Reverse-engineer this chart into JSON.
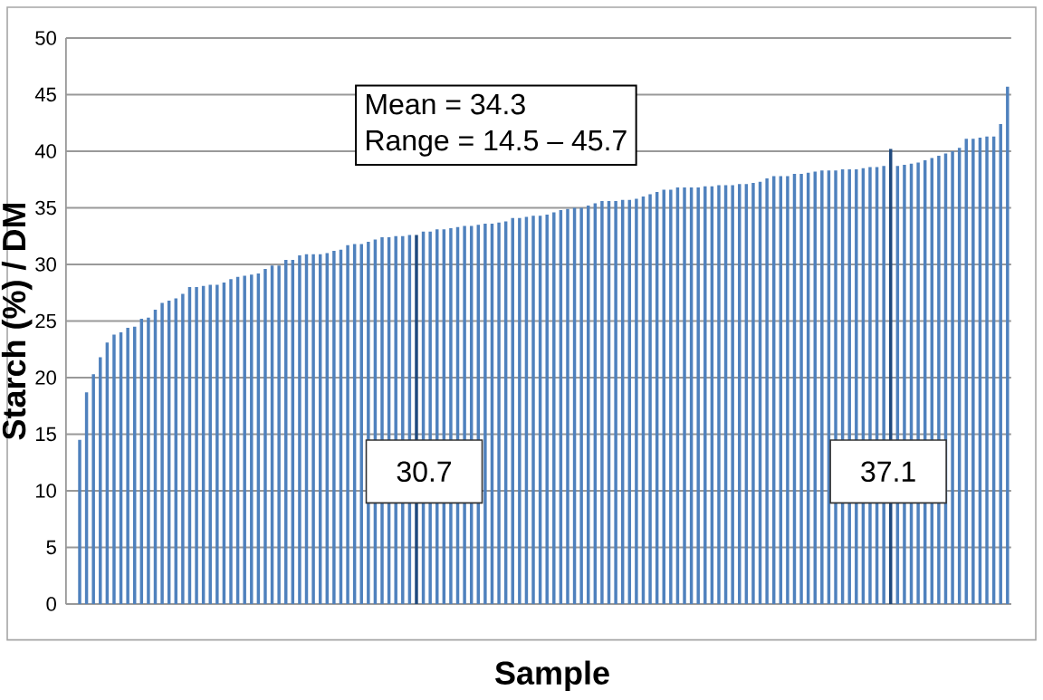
{
  "chart_data": {
    "type": "bar",
    "xlabel": "Sample",
    "ylabel": "Starch (%) / DM",
    "categories": [
      null,
      null,
      null,
      null,
      null,
      null,
      null,
      null,
      null,
      null,
      null,
      null,
      null,
      null,
      null,
      null,
      null,
      null,
      null,
      null,
      null,
      null,
      null,
      null,
      null,
      null,
      null,
      null,
      null,
      null,
      null,
      null,
      null,
      null,
      null,
      null,
      null,
      null,
      null,
      null,
      null,
      null,
      null,
      null,
      null,
      null,
      null,
      null,
      null,
      null,
      null,
      null,
      null,
      null,
      null,
      null,
      null,
      null,
      null,
      null,
      null,
      null,
      null,
      null,
      null,
      null,
      null,
      null,
      null,
      null,
      null,
      null,
      null,
      null,
      null,
      null,
      null,
      null,
      null,
      null,
      null,
      null,
      null,
      null,
      null,
      null,
      null,
      null,
      null,
      null,
      null,
      null,
      null,
      null,
      null,
      null,
      null,
      null,
      null,
      null,
      null,
      null,
      null,
      null,
      null,
      null,
      null,
      null,
      null,
      null,
      null,
      null,
      null,
      null,
      null,
      null,
      null,
      null,
      null,
      null,
      null,
      null,
      null,
      null,
      null,
      null,
      null,
      null,
      null,
      null,
      null,
      null,
      null,
      null,
      null,
      null
    ],
    "values": [
      14.5,
      18.7,
      20.3,
      21.8,
      23.1,
      23.8,
      24.0,
      24.4,
      24.5,
      25.2,
      25.3,
      26.0,
      26.6,
      26.8,
      27.0,
      27.4,
      28.0,
      28.0,
      28.1,
      28.2,
      28.2,
      28.4,
      28.7,
      28.9,
      29.0,
      29.1,
      29.2,
      29.6,
      29.9,
      29.9,
      30.4,
      30.4,
      30.8,
      30.9,
      30.9,
      30.9,
      31.0,
      31.2,
      31.3,
      31.7,
      31.8,
      31.8,
      32.0,
      32.2,
      32.4,
      32.4,
      32.5,
      32.5,
      32.6,
      32.6,
      32.9,
      32.9,
      33.1,
      33.1,
      33.2,
      33.3,
      33.4,
      33.4,
      33.5,
      33.6,
      33.6,
      33.7,
      33.8,
      34.1,
      34.1,
      34.2,
      34.3,
      34.3,
      34.4,
      34.6,
      34.8,
      34.9,
      35.0,
      35.0,
      35.2,
      35.4,
      35.6,
      35.6,
      35.6,
      35.7,
      35.7,
      35.8,
      36.0,
      36.2,
      36.4,
      36.6,
      36.6,
      36.8,
      36.8,
      36.8,
      36.8,
      36.9,
      36.9,
      37.0,
      37.0,
      37.0,
      37.1,
      37.1,
      37.2,
      37.3,
      37.6,
      37.8,
      37.8,
      37.8,
      38.0,
      38.0,
      38.1,
      38.2,
      38.3,
      38.3,
      38.3,
      38.4,
      38.4,
      38.4,
      38.5,
      38.6,
      38.6,
      38.7,
      40.2,
      38.7,
      38.8,
      38.9,
      39.0,
      39.2,
      39.4,
      39.6,
      39.8,
      40.0,
      40.3,
      41.1,
      41.1,
      41.2,
      41.3,
      41.3,
      42.4,
      45.7
    ],
    "colors": [
      "#4f81bd",
      "#4f81bd",
      "#4f81bd",
      "#4f81bd",
      "#4f81bd",
      "#4f81bd",
      "#4f81bd",
      "#4f81bd",
      "#4f81bd",
      "#4f81bd",
      "#4f81bd",
      "#4f81bd",
      "#4f81bd",
      "#4f81bd",
      "#4f81bd",
      "#4f81bd",
      "#4f81bd",
      "#4f81bd",
      "#4f81bd",
      "#4f81bd",
      "#4f81bd",
      "#4f81bd",
      "#4f81bd",
      "#4f81bd",
      "#4f81bd",
      "#4f81bd",
      "#4f81bd",
      "#4f81bd",
      "#4f81bd",
      "#4f81bd",
      "#4f81bd",
      "#4f81bd",
      "#4f81bd",
      "#4f81bd",
      "#4f81bd",
      "#4f81bd",
      "#4f81bd",
      "#4f81bd",
      "#4f81bd",
      "#4f81bd",
      "#4f81bd",
      "#4f81bd",
      "#4f81bd",
      "#4f81bd",
      "#4f81bd",
      "#4f81bd",
      "#4f81bd",
      "#4f81bd",
      "#4f81bd",
      "#1f497d",
      "#4f81bd",
      "#4f81bd",
      "#4f81bd",
      "#4f81bd",
      "#4f81bd",
      "#4f81bd",
      "#4f81bd",
      "#4f81bd",
      "#4f81bd",
      "#4f81bd",
      "#4f81bd",
      "#4f81bd",
      "#4f81bd",
      "#4f81bd",
      "#4f81bd",
      "#4f81bd",
      "#4f81bd",
      "#4f81bd",
      "#4f81bd",
      "#4f81bd",
      "#4f81bd",
      "#4f81bd",
      "#4f81bd",
      "#4f81bd",
      "#4f81bd",
      "#4f81bd",
      "#4f81bd",
      "#4f81bd",
      "#4f81bd",
      "#4f81bd",
      "#4f81bd",
      "#4f81bd",
      "#4f81bd",
      "#4f81bd",
      "#4f81bd",
      "#4f81bd",
      "#4f81bd",
      "#4f81bd",
      "#4f81bd",
      "#4f81bd",
      "#4f81bd",
      "#4f81bd",
      "#4f81bd",
      "#4f81bd",
      "#4f81bd",
      "#4f81bd",
      "#4f81bd",
      "#4f81bd",
      "#4f81bd",
      "#4f81bd",
      "#4f81bd",
      "#4f81bd",
      "#4f81bd",
      "#4f81bd",
      "#4f81bd",
      "#4f81bd",
      "#4f81bd",
      "#4f81bd",
      "#4f81bd",
      "#4f81bd",
      "#4f81bd",
      "#4f81bd",
      "#4f81bd",
      "#4f81bd",
      "#4f81bd",
      "#4f81bd",
      "#4f81bd",
      "#4f81bd",
      "#1f497d",
      "#4f81bd",
      "#4f81bd",
      "#4f81bd",
      "#4f81bd",
      "#4f81bd",
      "#4f81bd",
      "#4f81bd",
      "#4f81bd",
      "#4f81bd",
      "#4f81bd",
      "#4f81bd",
      "#4f81bd",
      "#4f81bd",
      "#4f81bd",
      "#4f81bd",
      "#4f81bd",
      "#4f81bd"
    ],
    "ylim": [
      0,
      50
    ],
    "yticks": [
      0,
      5,
      10,
      15,
      20,
      25,
      30,
      35,
      40,
      45,
      50
    ],
    "grid": "y",
    "annotations": [
      "Mean = 34.3",
      "Range = 14.5 – 45.7",
      "30.7",
      "37.1"
    ]
  }
}
